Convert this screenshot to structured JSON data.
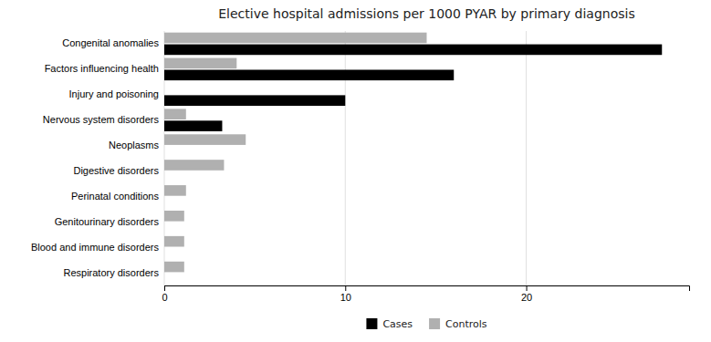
{
  "chart_data": {
    "type": "bar",
    "orientation": "horizontal",
    "title": "Elective hospital admissions per 1000 PYAR by primary diagnosis",
    "categories": [
      "Respiratory disorders",
      "Blood and immune disorders",
      "Genitourinary disorders",
      "Perinatal conditions",
      "Digestive disorders",
      "Neoplasms",
      "Nervous system disorders",
      "Injury and poisoning",
      "Factors influencing health",
      "Congenital anomalies"
    ],
    "series": [
      {
        "name": "Cases",
        "color": "#000000",
        "values": [
          0,
          0,
          0,
          0,
          0,
          0,
          3.2,
          10.0,
          16.0,
          27.5
        ]
      },
      {
        "name": "Controls",
        "color": "#b0b0b0",
        "values": [
          1.1,
          1.1,
          1.1,
          1.2,
          3.3,
          4.5,
          1.2,
          0,
          4.0,
          14.5
        ]
      }
    ],
    "xlim": [
      0,
      29
    ],
    "xticks": [
      0,
      10,
      20
    ],
    "grid": true,
    "legend": "bottom"
  }
}
